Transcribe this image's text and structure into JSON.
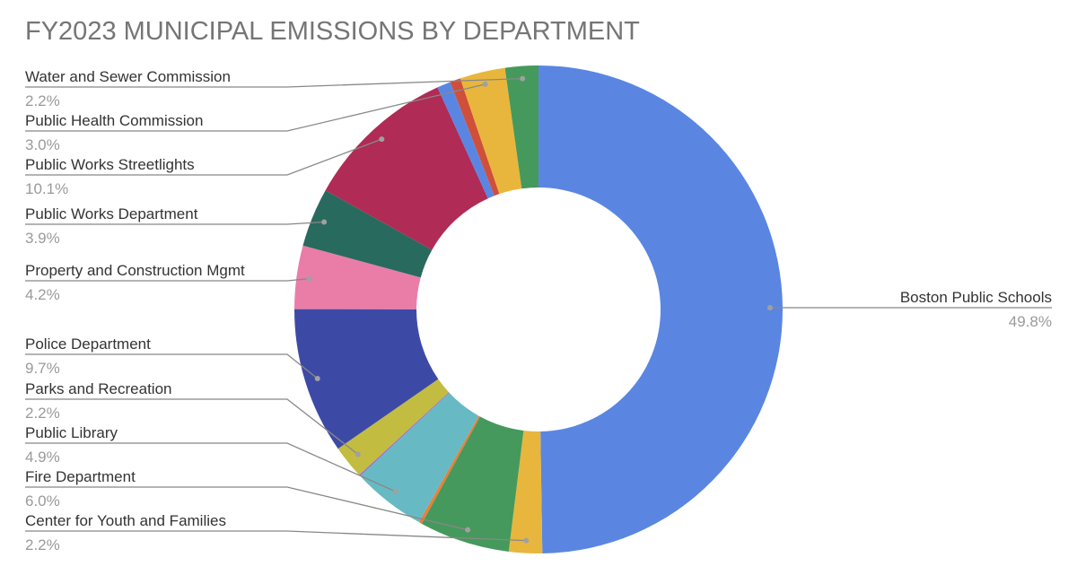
{
  "chart_data": {
    "type": "pie",
    "variant": "donut",
    "title": "FY2023 MUNICIPAL EMISSIONS BY DEPARTMENT",
    "legend": "none",
    "slices": [
      {
        "label": "Boston Public Schools",
        "value": 49.8,
        "pct_label": "49.8%",
        "color": "#5a86e2"
      },
      {
        "label": "Center for Youth and Families",
        "value": 2.2,
        "pct_label": "2.2%",
        "color": "#e8b63c"
      },
      {
        "label": "Fire Department",
        "value": 6.0,
        "pct_label": "6.0%",
        "color": "#45995c"
      },
      {
        "label": "",
        "value": 0.2,
        "pct_label": "",
        "color": "#ef7d32"
      },
      {
        "label": "Public Library",
        "value": 4.9,
        "pct_label": "4.9%",
        "color": "#67bac4"
      },
      {
        "label": "",
        "value": 0.1,
        "pct_label": "",
        "color": "#9c6ed0"
      },
      {
        "label": "Parks and Recreation",
        "value": 2.2,
        "pct_label": "2.2%",
        "color": "#c2bc41"
      },
      {
        "label": "Police Department",
        "value": 9.7,
        "pct_label": "9.7%",
        "color": "#3d4aa5"
      },
      {
        "label": "Property and Construction Mgmt",
        "value": 4.2,
        "pct_label": "4.2%",
        "color": "#e97da8"
      },
      {
        "label": "Public Works Department",
        "value": 3.9,
        "pct_label": "3.9%",
        "color": "#286a5e"
      },
      {
        "label": "Public Works Streetlights",
        "value": 10.1,
        "pct_label": "10.1%",
        "color": "#b02b56"
      },
      {
        "label": "",
        "value": 0.9,
        "pct_label": "",
        "color": "#5a86e2"
      },
      {
        "label": "",
        "value": 0.7,
        "pct_label": "",
        "color": "#cf4f3b"
      },
      {
        "label": "Public Health Commission",
        "value": 3.0,
        "pct_label": "3.0%",
        "color": "#e8b63c"
      },
      {
        "label": "Water and Sewer Commission",
        "value": 2.2,
        "pct_label": "2.2%",
        "color": "#45995c"
      }
    ]
  }
}
